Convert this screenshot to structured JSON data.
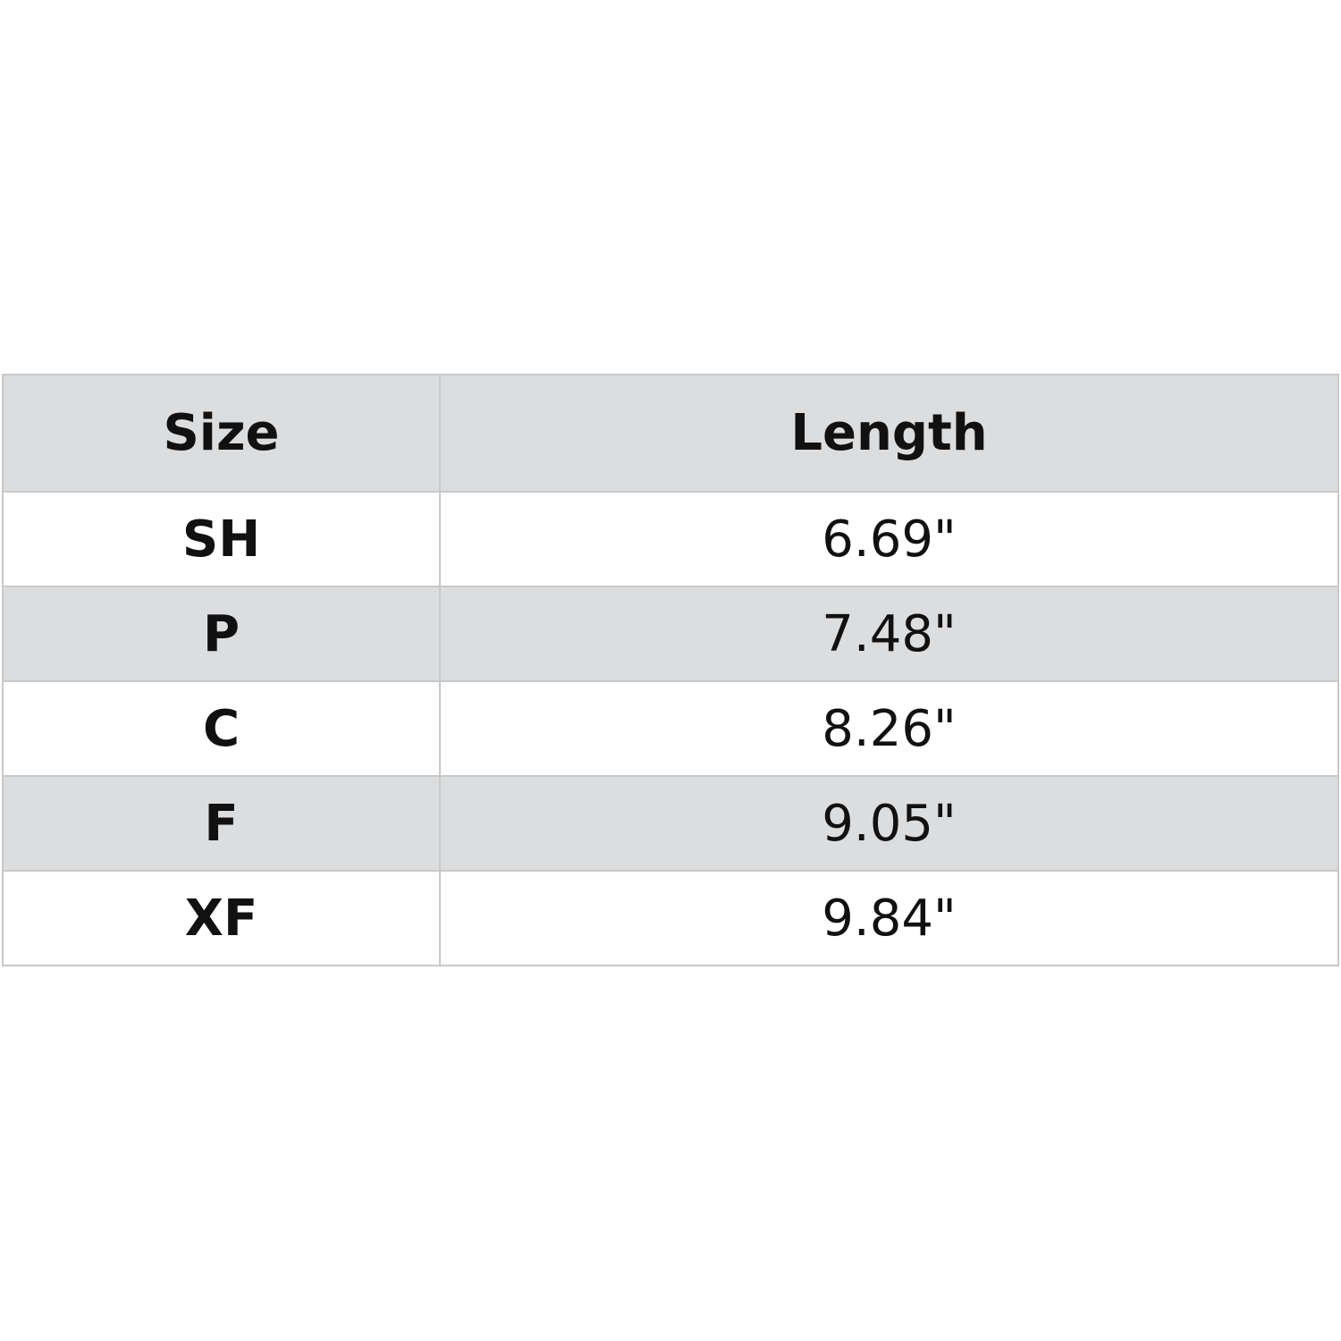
{
  "table": {
    "headers": [
      "Size",
      "Length"
    ],
    "rows": [
      {
        "size": "SH",
        "length": "6.69\""
      },
      {
        "size": "P",
        "length": "7.48\""
      },
      {
        "size": "C",
        "length": "8.26\""
      },
      {
        "size": "F",
        "length": "9.05\""
      },
      {
        "size": "XF",
        "length": "9.84\""
      }
    ]
  },
  "colors": {
    "header_bg": "#dcdddf",
    "stripe_bg": "#dcdddf",
    "border": "#c9c9c9"
  }
}
